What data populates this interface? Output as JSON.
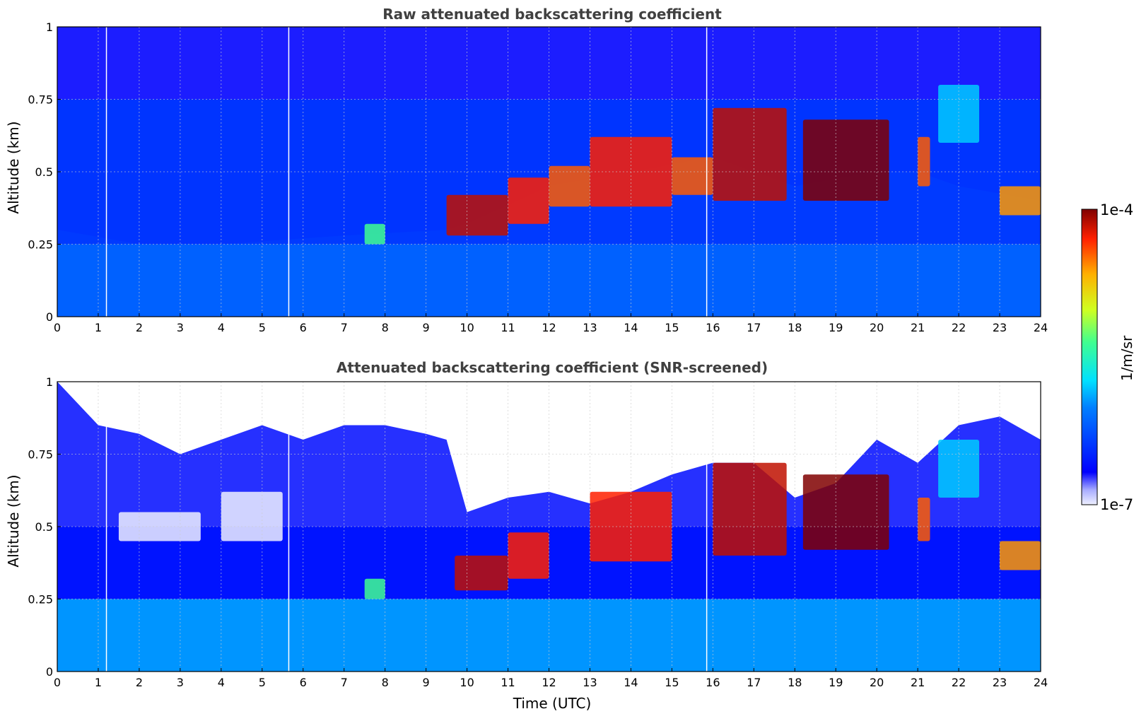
{
  "chart_data": [
    {
      "type": "heatmap",
      "title": "Raw attenuated backscattering coefficient",
      "xlabel": "",
      "ylabel": "Altitude (km)",
      "xlim": [
        0,
        24
      ],
      "ylim": [
        0,
        1
      ],
      "x_ticks": [
        "0",
        "1",
        "2",
        "3",
        "4",
        "5",
        "6",
        "7",
        "8",
        "9",
        "10",
        "11",
        "12",
        "13",
        "14",
        "15",
        "16",
        "17",
        "18",
        "19",
        "20",
        "21",
        "22",
        "23",
        "24"
      ],
      "y_ticks": [
        "0",
        "0.25",
        "0.5",
        "0.75",
        "1"
      ],
      "grid": true,
      "layers": [
        {
          "x_start": 0,
          "x_end": 24,
          "y_bottom": 0.0,
          "y_top": 0.25,
          "level": 0.35
        },
        {
          "x_start": 0,
          "x_end": 24,
          "y_bottom": 0.25,
          "y_top": 0.75,
          "level": 0.2
        },
        {
          "x_start": 0,
          "x_end": 24,
          "y_bottom": 0.75,
          "y_top": 1.0,
          "level": 0.1
        }
      ],
      "aerosol_layer_top_km": [
        {
          "x": 0,
          "y": 0.3
        },
        {
          "x": 2,
          "y": 0.25
        },
        {
          "x": 4,
          "y": 0.25
        },
        {
          "x": 7,
          "y": 0.28
        },
        {
          "x": 9.5,
          "y": 0.3
        },
        {
          "x": 10,
          "y": 0.32
        },
        {
          "x": 12,
          "y": 0.45
        },
        {
          "x": 14,
          "y": 0.5
        },
        {
          "x": 16,
          "y": 0.55
        },
        {
          "x": 18,
          "y": 0.45
        },
        {
          "x": 20,
          "y": 0.5
        },
        {
          "x": 21,
          "y": 0.5
        },
        {
          "x": 22,
          "y": 0.45
        },
        {
          "x": 24,
          "y": 0.4
        }
      ],
      "high_backscatter_features": [
        {
          "x_start": 7.5,
          "x_end": 8.0,
          "y_bottom": 0.25,
          "y_top": 0.32,
          "level": 0.55
        },
        {
          "x_start": 9.5,
          "x_end": 11.0,
          "y_bottom": 0.28,
          "y_top": 0.42,
          "level": 0.95
        },
        {
          "x_start": 11.0,
          "x_end": 12.0,
          "y_bottom": 0.32,
          "y_top": 0.48,
          "level": 0.9
        },
        {
          "x_start": 12.0,
          "x_end": 13.0,
          "y_bottom": 0.38,
          "y_top": 0.52,
          "level": 0.85
        },
        {
          "x_start": 13.0,
          "x_end": 15.0,
          "y_bottom": 0.38,
          "y_top": 0.62,
          "level": 0.9
        },
        {
          "x_start": 15.0,
          "x_end": 16.0,
          "y_bottom": 0.42,
          "y_top": 0.55,
          "level": 0.85
        },
        {
          "x_start": 16.0,
          "x_end": 17.8,
          "y_bottom": 0.4,
          "y_top": 0.72,
          "level": 0.95
        },
        {
          "x_start": 18.2,
          "x_end": 20.3,
          "y_bottom": 0.4,
          "y_top": 0.68,
          "level": 1.0
        },
        {
          "x_start": 21.0,
          "x_end": 21.3,
          "y_bottom": 0.45,
          "y_top": 0.62,
          "level": 0.85
        },
        {
          "x_start": 21.5,
          "x_end": 22.5,
          "y_bottom": 0.6,
          "y_top": 0.8,
          "level": 0.4
        },
        {
          "x_start": 23.0,
          "x_end": 24.0,
          "y_bottom": 0.35,
          "y_top": 0.45,
          "level": 0.8
        }
      ],
      "data_gaps_utc": [
        1.2,
        5.65,
        15.85
      ]
    },
    {
      "type": "heatmap",
      "title": "Attenuated backscattering coefficient (SNR-screened)",
      "xlabel": "Time (UTC)",
      "ylabel": "Altitude (km)",
      "xlim": [
        0,
        24
      ],
      "ylim": [
        0,
        1
      ],
      "x_ticks": [
        "0",
        "1",
        "2",
        "3",
        "4",
        "5",
        "6",
        "7",
        "8",
        "9",
        "10",
        "11",
        "12",
        "13",
        "14",
        "15",
        "16",
        "17",
        "18",
        "19",
        "20",
        "21",
        "22",
        "23",
        "24"
      ],
      "y_ticks": [
        "0",
        "0.25",
        "0.5",
        "0.75",
        "1"
      ],
      "grid": true,
      "layers": [
        {
          "x_start": 0,
          "x_end": 24,
          "y_bottom": 0.0,
          "y_top": 0.25,
          "level": 0.35
        },
        {
          "x_start": 0,
          "x_end": 24,
          "y_bottom": 0.25,
          "y_top": 0.5,
          "level": 0.22
        }
      ],
      "valid_data_top_km": [
        {
          "x": 0,
          "y": 1.0
        },
        {
          "x": 1,
          "y": 0.85
        },
        {
          "x": 2,
          "y": 0.82
        },
        {
          "x": 3,
          "y": 0.75
        },
        {
          "x": 4,
          "y": 0.8
        },
        {
          "x": 5,
          "y": 0.85
        },
        {
          "x": 6,
          "y": 0.8
        },
        {
          "x": 7,
          "y": 0.85
        },
        {
          "x": 8,
          "y": 0.85
        },
        {
          "x": 9,
          "y": 0.82
        },
        {
          "x": 9.5,
          "y": 0.8
        },
        {
          "x": 10,
          "y": 0.55
        },
        {
          "x": 11,
          "y": 0.6
        },
        {
          "x": 12,
          "y": 0.62
        },
        {
          "x": 13,
          "y": 0.58
        },
        {
          "x": 14,
          "y": 0.62
        },
        {
          "x": 15,
          "y": 0.68
        },
        {
          "x": 16,
          "y": 0.72
        },
        {
          "x": 17,
          "y": 0.72
        },
        {
          "x": 18,
          "y": 0.6
        },
        {
          "x": 19,
          "y": 0.65
        },
        {
          "x": 20,
          "y": 0.8
        },
        {
          "x": 21,
          "y": 0.72
        },
        {
          "x": 22,
          "y": 0.85
        },
        {
          "x": 23,
          "y": 0.88
        },
        {
          "x": 24,
          "y": 0.8
        }
      ],
      "high_backscatter_features": [
        {
          "x_start": 1.5,
          "x_end": 3.5,
          "y_bottom": 0.45,
          "y_top": 0.55,
          "level": 0.0
        },
        {
          "x_start": 4.0,
          "x_end": 5.5,
          "y_bottom": 0.45,
          "y_top": 0.62,
          "level": 0.0
        },
        {
          "x_start": 7.5,
          "x_end": 8.0,
          "y_bottom": 0.25,
          "y_top": 0.32,
          "level": 0.55
        },
        {
          "x_start": 9.7,
          "x_end": 11.0,
          "y_bottom": 0.28,
          "y_top": 0.4,
          "level": 0.95
        },
        {
          "x_start": 11.0,
          "x_end": 12.0,
          "y_bottom": 0.32,
          "y_top": 0.48,
          "level": 0.9
        },
        {
          "x_start": 13.0,
          "x_end": 15.0,
          "y_bottom": 0.38,
          "y_top": 0.62,
          "level": 0.9
        },
        {
          "x_start": 16.0,
          "x_end": 17.8,
          "y_bottom": 0.4,
          "y_top": 0.72,
          "level": 0.95
        },
        {
          "x_start": 18.2,
          "x_end": 20.3,
          "y_bottom": 0.42,
          "y_top": 0.68,
          "level": 1.0
        },
        {
          "x_start": 21.0,
          "x_end": 21.3,
          "y_bottom": 0.45,
          "y_top": 0.6,
          "level": 0.85
        },
        {
          "x_start": 21.5,
          "x_end": 22.5,
          "y_bottom": 0.6,
          "y_top": 0.8,
          "level": 0.4
        },
        {
          "x_start": 23.0,
          "x_end": 24.0,
          "y_bottom": 0.35,
          "y_top": 0.45,
          "level": 0.8
        }
      ],
      "data_gaps_utc": [
        1.2,
        5.65,
        15.85
      ]
    }
  ],
  "colorbar": {
    "max_label": "1e-4",
    "min_label": "1e-7",
    "label": "1/m/sr",
    "colormap": "jet"
  },
  "colors": {
    "title_text": "#404040",
    "grid": "#cccccc",
    "low": "#ffffff",
    "background_blue": "#0a3cf5"
  }
}
